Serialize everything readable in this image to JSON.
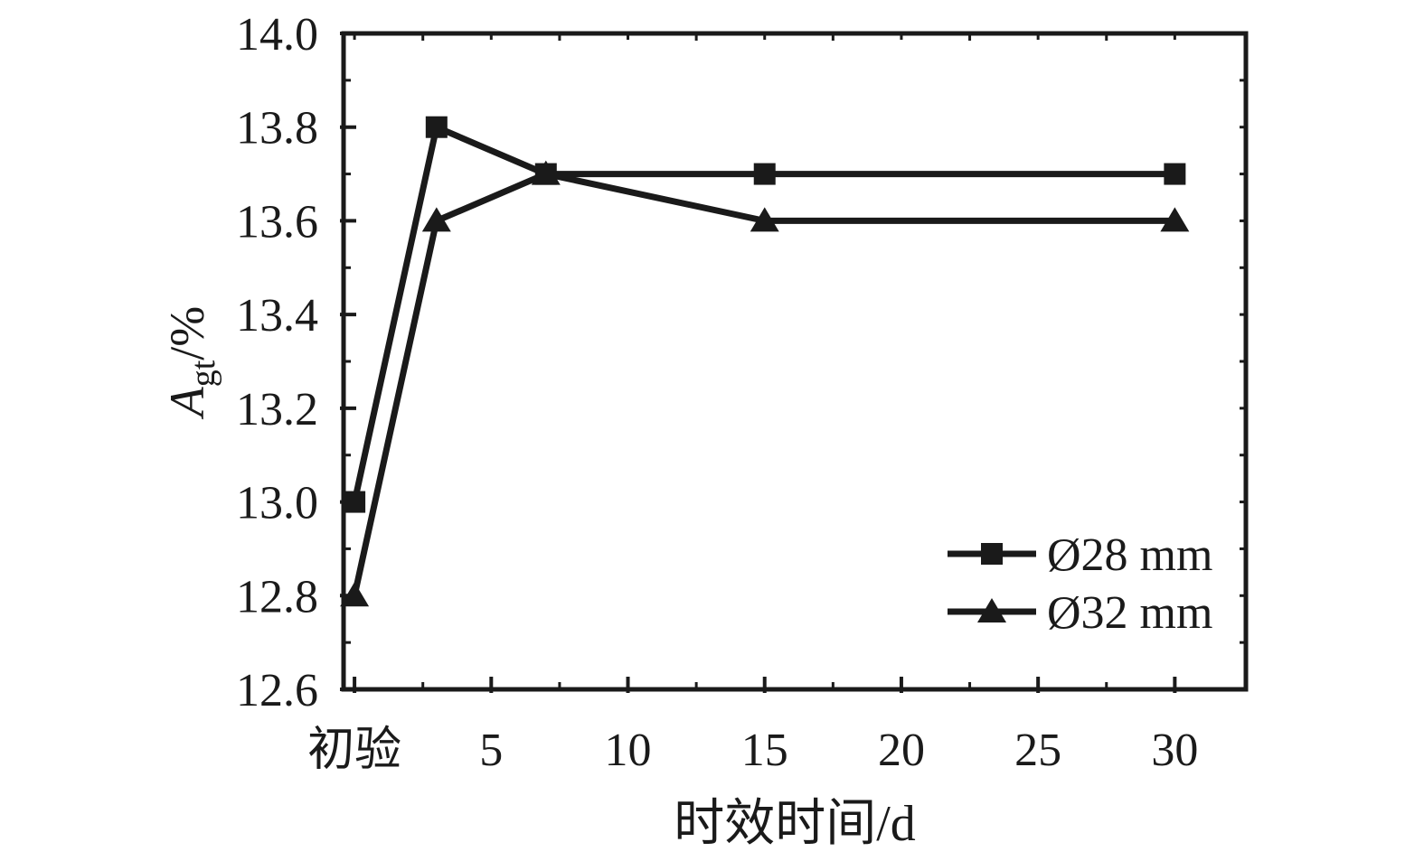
{
  "colors": {
    "foreground": "#1a1a1a",
    "background": "#ffffff"
  },
  "chart_data": {
    "type": "line",
    "title": "",
    "xlabel": "时效时间/d",
    "ylabel": {
      "variable": "A",
      "subscript": "gt",
      "suffix": "/%"
    },
    "x_axis": {
      "tick_labels": [
        "初验",
        "5",
        "10",
        "15",
        "20",
        "25",
        "30"
      ],
      "tick_values": [
        0,
        5,
        10,
        15,
        20,
        25,
        30
      ],
      "minor_tick_values": [
        2.5,
        7.5,
        12.5,
        17.5,
        22.5,
        27.5
      ],
      "note": "初验 means initial test, plotted at day 0"
    },
    "y_axis": {
      "tick_labels": [
        "12.6",
        "12.8",
        "13.0",
        "13.2",
        "13.4",
        "13.6",
        "13.8",
        "14.0"
      ],
      "tick_values": [
        12.6,
        12.8,
        13.0,
        13.2,
        13.4,
        13.6,
        13.8,
        14.0
      ],
      "minor_step": 0.1,
      "ylim": [
        12.6,
        14.0
      ]
    },
    "series": [
      {
        "name": "Ø28 mm",
        "marker": "square",
        "x": [
          0,
          3,
          7,
          15,
          30
        ],
        "values": [
          13.0,
          13.8,
          13.7,
          13.7,
          13.7
        ]
      },
      {
        "name": "Ø32 mm",
        "marker": "triangle",
        "x": [
          0,
          3,
          7,
          15,
          30
        ],
        "values": [
          12.8,
          13.6,
          13.7,
          13.6,
          13.6
        ]
      }
    ],
    "legend_position": "inside-bottom-right",
    "grid": false,
    "line_color": "#1a1a1a"
  }
}
